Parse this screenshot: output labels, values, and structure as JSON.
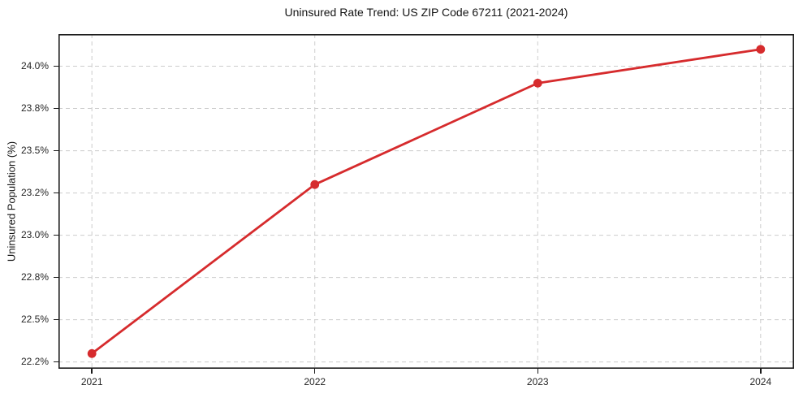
{
  "chart_data": {
    "type": "line",
    "title": "Uninsured Rate Trend: US ZIP Code 67211 (2021-2024)",
    "xlabel": "",
    "ylabel": "Uninsured Population (%)",
    "x": [
      2021,
      2022,
      2023,
      2024
    ],
    "values": [
      22.3,
      23.3,
      23.9,
      24.1
    ],
    "value_unit": "%",
    "xlim": [
      2020.85,
      2024.15
    ],
    "ylim": [
      22.21,
      24.19
    ],
    "xticks": [
      {
        "value": 2021,
        "label": "2021"
      },
      {
        "value": 2022,
        "label": "2022"
      },
      {
        "value": 2023,
        "label": "2023"
      },
      {
        "value": 2024,
        "label": "2024"
      }
    ],
    "yticks": [
      {
        "value": 22.25,
        "label": "22.2%"
      },
      {
        "value": 22.5,
        "label": "22.5%"
      },
      {
        "value": 22.75,
        "label": "22.8%"
      },
      {
        "value": 23.0,
        "label": "23.0%"
      },
      {
        "value": 23.25,
        "label": "23.2%"
      },
      {
        "value": 23.5,
        "label": "23.5%"
      },
      {
        "value": 23.75,
        "label": "23.8%"
      },
      {
        "value": 24.0,
        "label": "24.0%"
      }
    ],
    "grid": true,
    "grid_style": "dashed",
    "legend": false,
    "marker": "circle",
    "line_color": "#d62b2d"
  },
  "colors": {
    "line": "#d62b2d",
    "grid": "#cccccc",
    "spine": "#1a1a1a",
    "text": "#262626",
    "background": "#ffffff"
  }
}
